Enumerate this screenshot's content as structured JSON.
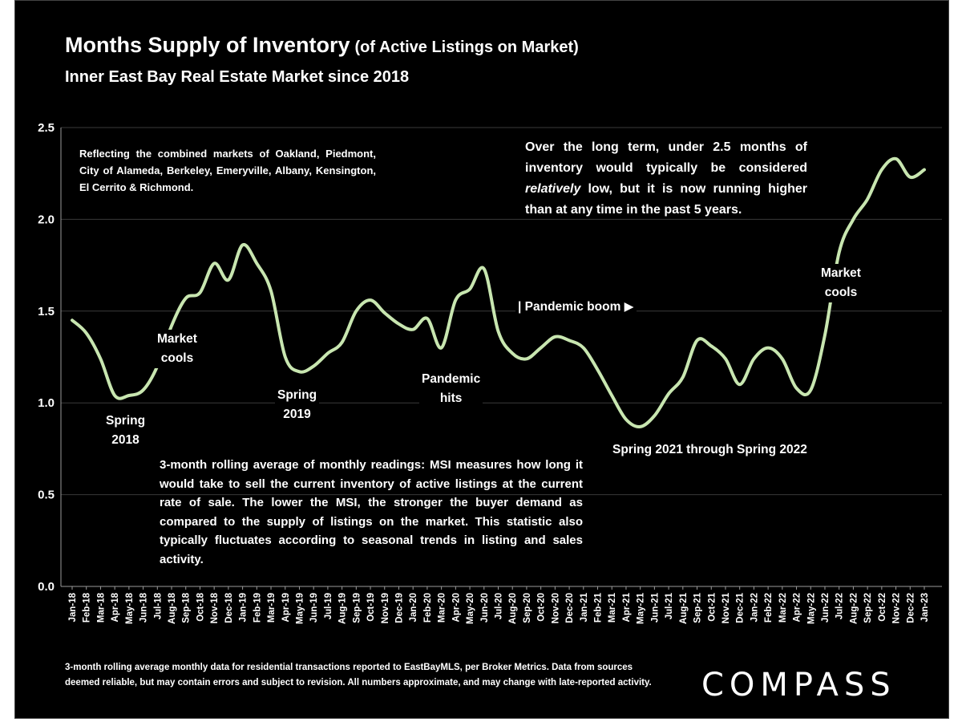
{
  "header": {
    "title": "Months Supply of Inventory",
    "title_paren": "(of Active Listings on Market)",
    "subtitle": "Inner East Bay Real Estate Market since 2018"
  },
  "notes": {
    "markets": "Reflecting the combined markets of Oakland, Piedmont, City of Alameda, Berkeley, Emeryville, Albany, Kensington, El Cerrito & Richmond.",
    "longterm_pre": "Over the long term, under 2.5 months of inventory would typically be considered ",
    "longterm_em": "relatively",
    "longterm_post": " low, but it is now running higher than at any time in the past 5 years.",
    "msi": "3-month rolling average of monthly readings: MSI measures how long it would take to sell the current inventory of active listings at the current rate of sale. The lower the MSI, the stronger the buyer demand as compared to the supply of listings on the market. This statistic also typically fluctuates according to seasonal trends in listing and sales activity."
  },
  "callouts": {
    "spring_2018_a": "Spring",
    "spring_2018_b": "2018",
    "market_cools_1_a": "Market",
    "market_cools_1_b": "cools",
    "spring_2019_a": "Spring",
    "spring_2019_b": "2019",
    "pandemic_hits_a": "Pandemic",
    "pandemic_hits_b": "hits",
    "pandemic_boom": "| Pandemic boom ▶",
    "spring_2021_2022": "Spring 2021 through Spring 2022",
    "market_cools_2_a": "Market",
    "market_cools_2_b": "cools"
  },
  "footnote": "3-month rolling average monthly data for residential transactions reported to EastBayMLS, per Broker Metrics. Data from sources deemed reliable, but may contain errors and subject to revision. All numbers approximate, and may change with late-reported activity.",
  "logo": "COMPASS",
  "colors": {
    "background": "#000000",
    "line": "#c8e6b0",
    "text": "#ffffff",
    "grid": "#3a3a3a"
  },
  "chart_data": {
    "type": "line",
    "ylim": [
      0,
      2.5
    ],
    "yticks": [
      "0.0",
      "0.5",
      "1.0",
      "1.5",
      "2.0",
      "2.5"
    ],
    "grid": true,
    "categories": [
      "Jan-18",
      "Feb-18",
      "Mar-18",
      "Apr-18",
      "May-18",
      "Jun-18",
      "Jul-18",
      "Aug-18",
      "Sep-18",
      "Oct-18",
      "Nov-18",
      "Dec-18",
      "Jan-19",
      "Feb-19",
      "Mar-19",
      "Apr-19",
      "May-19",
      "Jun-19",
      "Jul-19",
      "Aug-19",
      "Sep-19",
      "Oct-19",
      "Nov-19",
      "Dec-19",
      "Jan-20",
      "Feb-20",
      "Mar-20",
      "Apr-20",
      "May-20",
      "Jun-20",
      "Jul-20",
      "Aug-20",
      "Sep-20",
      "Oct-20",
      "Nov-20",
      "Dec-20",
      "Jan-21",
      "Feb-21",
      "Mar-21",
      "Apr-21",
      "May-21",
      "Jun-21",
      "Jul-21",
      "Aug-21",
      "Sep-21",
      "Oct-21",
      "Nov-21",
      "Dec-21",
      "Jan-22",
      "Feb-22",
      "Mar-22",
      "Apr-22",
      "May-22",
      "Jun-22",
      "Jul-22",
      "Aug-22",
      "Sep-22",
      "Oct-22",
      "Nov-22",
      "Dec-22",
      "Jan-23"
    ],
    "series": [
      {
        "values": [
          1.45,
          1.38,
          1.24,
          1.04,
          1.04,
          1.07,
          1.2,
          1.42,
          1.57,
          1.6,
          1.76,
          1.67,
          1.86,
          1.76,
          1.61,
          1.25,
          1.17,
          1.2,
          1.27,
          1.33,
          1.5,
          1.56,
          1.49,
          1.43,
          1.4,
          1.46,
          1.3,
          1.56,
          1.62,
          1.73,
          1.39,
          1.27,
          1.24,
          1.3,
          1.36,
          1.34,
          1.3,
          1.18,
          1.04,
          0.91,
          0.87,
          0.93,
          1.05,
          1.14,
          1.34,
          1.31,
          1.24,
          1.1,
          1.24,
          1.3,
          1.24,
          1.08,
          1.07,
          1.37,
          1.82,
          2.0,
          2.11,
          2.27,
          2.33,
          2.23,
          2.27
        ]
      }
    ]
  }
}
